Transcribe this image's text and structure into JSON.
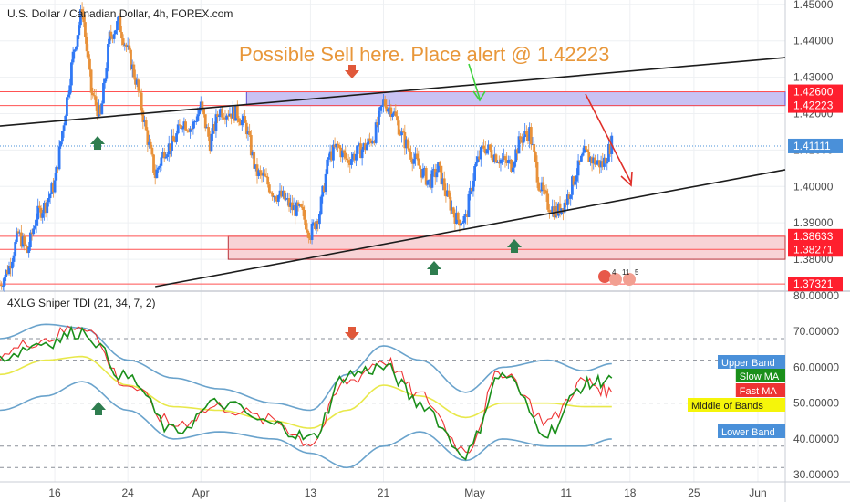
{
  "header": {
    "symbol_title": "U.S. Dollar / Canadian Dollar, 4h, FOREX.com"
  },
  "annotation": {
    "sell_note": "Possible Sell here. Place alert @ 1.42223"
  },
  "colors": {
    "up_candle": "#3179f5",
    "down_candle": "#e8913a",
    "resistance_line": "#ff5252",
    "supply_zone": "#c9c2f3",
    "demand_zone": "#f8d3d6",
    "trendline": "#1c1c1c",
    "current_price": "#4a90d9",
    "up_arrow": "#2e7d4f",
    "down_arrow": "#e0583a",
    "annotation_text": "#e8973a",
    "tdi_upper": "#6aa3cc",
    "tdi_slow": "#1a8f1a",
    "tdi_fast": "#ee3333",
    "tdi_middle": "#e8e84a"
  },
  "price_axis": {
    "ticks": [
      "1.45000",
      "1.44000",
      "1.43000",
      "1.42000",
      "1.41000",
      "1.40000",
      "1.39000",
      "1.38000"
    ]
  },
  "price_tags": [
    {
      "label": "1.42600",
      "price": 1.426,
      "kind": "red"
    },
    {
      "label": "1.42223",
      "price": 1.42223,
      "kind": "red"
    },
    {
      "label": "1.41111",
      "price": 1.41111,
      "kind": "blue"
    },
    {
      "label": "1.38633",
      "price": 1.38633,
      "kind": "red"
    },
    {
      "label": "1.38271",
      "price": 1.38271,
      "kind": "red"
    },
    {
      "label": "1.37321",
      "price": 1.37321,
      "kind": "red"
    }
  ],
  "indicator": {
    "title": "4XLG Sniper TDI (21, 34, 7, 2)",
    "ticks": [
      "80.00000",
      "70.00000",
      "60.00000",
      "50.00000",
      "40.00000",
      "30.00000"
    ],
    "legend": [
      {
        "label": "Upper Band",
        "value": 60.5,
        "bg": "#4a90d9",
        "fg": "#ffffff"
      },
      {
        "label": "Slow MA",
        "value": 57.2,
        "bg": "#1a8f1a",
        "fg": "#ffffff"
      },
      {
        "label": "Fast MA",
        "value": 52.8,
        "bg": "#ee3333",
        "fg": "#ffffff"
      },
      {
        "label": "Middle of Bands",
        "value": 48.3,
        "bg": "#f5f50a",
        "fg": "#1c1c1c"
      },
      {
        "label": "Lower Band",
        "value": 40.3,
        "bg": "#4a90d9",
        "fg": "#ffffff"
      }
    ]
  },
  "time_axis": {
    "ticks": [
      "16",
      "24",
      "Apr",
      "13",
      "21",
      "May",
      "11",
      "18",
      "25",
      "Jun"
    ]
  },
  "events": {
    "label_a": "4",
    "label_b": "11",
    "label_c": "5"
  },
  "chart_data": [
    {
      "type": "candlestick",
      "title": "U.S. Dollar / Canadian Dollar, 4h, FOREX.com",
      "ylim": [
        1.3715,
        1.4512
      ],
      "close_path": [
        {
          "date": "2020-03-10",
          "close": 1.373
        },
        {
          "date": "2020-03-11",
          "close": 1.378
        },
        {
          "date": "2020-03-12",
          "close": 1.387
        },
        {
          "date": "2020-03-13",
          "close": 1.382
        },
        {
          "date": "2020-03-14",
          "close": 1.392
        },
        {
          "date": "2020-03-15",
          "close": 1.395
        },
        {
          "date": "2020-03-16",
          "close": 1.401
        },
        {
          "date": "2020-03-17",
          "close": 1.418
        },
        {
          "date": "2020-03-18",
          "close": 1.436
        },
        {
          "date": "2020-03-19",
          "close": 1.449
        },
        {
          "date": "2020-03-20",
          "close": 1.426
        },
        {
          "date": "2020-03-21",
          "close": 1.419
        },
        {
          "date": "2020-03-22",
          "close": 1.441
        },
        {
          "date": "2020-03-23",
          "close": 1.445
        },
        {
          "date": "2020-03-24",
          "close": 1.437
        },
        {
          "date": "2020-03-25",
          "close": 1.428
        },
        {
          "date": "2020-03-26",
          "close": 1.415
        },
        {
          "date": "2020-03-27",
          "close": 1.403
        },
        {
          "date": "2020-03-28",
          "close": 1.41
        },
        {
          "date": "2020-03-29",
          "close": 1.412
        },
        {
          "date": "2020-03-30",
          "close": 1.418
        },
        {
          "date": "2020-03-31",
          "close": 1.416
        },
        {
          "date": "2020-04-01",
          "close": 1.422
        },
        {
          "date": "2020-04-02",
          "close": 1.412
        },
        {
          "date": "2020-04-03",
          "close": 1.421
        },
        {
          "date": "2020-04-05",
          "close": 1.42
        },
        {
          "date": "2020-04-06",
          "close": 1.416
        },
        {
          "date": "2020-04-07",
          "close": 1.404
        },
        {
          "date": "2020-04-08",
          "close": 1.402
        },
        {
          "date": "2020-04-09",
          "close": 1.398
        },
        {
          "date": "2020-04-10",
          "close": 1.397
        },
        {
          "date": "2020-04-11",
          "close": 1.394
        },
        {
          "date": "2020-04-12",
          "close": 1.393
        },
        {
          "date": "2020-04-13",
          "close": 1.387
        },
        {
          "date": "2020-04-14",
          "close": 1.393
        },
        {
          "date": "2020-04-15",
          "close": 1.408
        },
        {
          "date": "2020-04-16",
          "close": 1.411
        },
        {
          "date": "2020-04-17",
          "close": 1.407
        },
        {
          "date": "2020-04-18",
          "close": 1.409
        },
        {
          "date": "2020-04-19",
          "close": 1.411
        },
        {
          "date": "2020-04-20",
          "close": 1.414
        },
        {
          "date": "2020-04-21",
          "close": 1.423
        },
        {
          "date": "2020-04-22",
          "close": 1.421
        },
        {
          "date": "2020-04-23",
          "close": 1.414
        },
        {
          "date": "2020-04-24",
          "close": 1.409
        },
        {
          "date": "2020-04-25",
          "close": 1.405
        },
        {
          "date": "2020-04-26",
          "close": 1.401
        },
        {
          "date": "2020-04-27",
          "close": 1.405
        },
        {
          "date": "2020-04-28",
          "close": 1.397
        },
        {
          "date": "2020-04-29",
          "close": 1.391
        },
        {
          "date": "2020-04-30",
          "close": 1.391
        },
        {
          "date": "2020-05-01",
          "close": 1.405
        },
        {
          "date": "2020-05-02",
          "close": 1.411
        },
        {
          "date": "2020-05-03",
          "close": 1.409
        },
        {
          "date": "2020-05-04",
          "close": 1.407
        },
        {
          "date": "2020-05-05",
          "close": 1.406
        },
        {
          "date": "2020-05-06",
          "close": 1.413
        },
        {
          "date": "2020-05-07",
          "close": 1.415
        },
        {
          "date": "2020-05-08",
          "close": 1.401
        },
        {
          "date": "2020-05-09",
          "close": 1.395
        },
        {
          "date": "2020-05-10",
          "close": 1.393
        },
        {
          "date": "2020-05-11",
          "close": 1.396
        },
        {
          "date": "2020-05-12",
          "close": 1.403
        },
        {
          "date": "2020-05-13",
          "close": 1.409
        },
        {
          "date": "2020-05-14",
          "close": 1.407
        },
        {
          "date": "2020-05-15",
          "close": 1.406
        },
        {
          "date": "2020-05-16",
          "close": 1.412
        }
      ],
      "zones": [
        {
          "name": "supply",
          "from": 1.42223,
          "to": 1.426,
          "start": "2020-04-06"
        },
        {
          "name": "demand",
          "from": 1.38,
          "to": 1.38633,
          "start": "2020-04-04"
        }
      ],
      "horizontal_lines": [
        1.426,
        1.42223,
        1.38633,
        1.38271,
        1.37321
      ],
      "trendlines": [
        {
          "from": {
            "date": "2020-03-10",
            "price": 1.4166
          },
          "to": {
            "date": "2020-06-04",
            "price": 1.4354
          }
        },
        {
          "from": {
            "date": "2020-03-27",
            "price": 1.3725
          },
          "to": {
            "date": "2020-06-04",
            "price": 1.4046
          }
        }
      ],
      "current_price": 1.41111
    },
    {
      "type": "line",
      "title": "4XLG Sniper TDI (21, 34, 7, 2)",
      "ylim": [
        28,
        81
      ],
      "dashed_levels": [
        68,
        62,
        50,
        38,
        32
      ],
      "series": [
        {
          "name": "Upper Band",
          "values": [
            [
              "2020-03-10",
              68
            ],
            [
              "2020-03-15",
              72
            ],
            [
              "2020-03-19",
              71
            ],
            [
              "2020-03-24",
              62
            ],
            [
              "2020-03-29",
              57
            ],
            [
              "2020-04-03",
              54
            ],
            [
              "2020-04-09",
              50
            ],
            [
              "2020-04-13",
              48
            ],
            [
              "2020-04-17",
              58
            ],
            [
              "2020-04-21",
              66
            ],
            [
              "2020-04-25",
              62
            ],
            [
              "2020-04-30",
              53
            ],
            [
              "2020-05-04",
              60
            ],
            [
              "2020-05-09",
              62
            ],
            [
              "2020-05-13",
              59
            ],
            [
              "2020-05-16",
              61
            ]
          ]
        },
        {
          "name": "Slow MA",
          "values": [
            [
              "2020-03-10",
              63
            ],
            [
              "2020-03-15",
              67
            ],
            [
              "2020-03-19",
              70
            ],
            [
              "2020-03-24",
              57
            ],
            [
              "2020-03-29",
              42
            ],
            [
              "2020-04-03",
              50
            ],
            [
              "2020-04-09",
              44
            ],
            [
              "2020-04-13",
              40
            ],
            [
              "2020-04-17",
              58
            ],
            [
              "2020-04-21",
              60
            ],
            [
              "2020-04-25",
              50
            ],
            [
              "2020-04-30",
              36
            ],
            [
              "2020-05-04",
              58
            ],
            [
              "2020-05-09",
              42
            ],
            [
              "2020-05-13",
              55
            ],
            [
              "2020-05-16",
              57
            ]
          ]
        },
        {
          "name": "Fast MA",
          "values": [
            [
              "2020-03-10",
              64
            ],
            [
              "2020-03-15",
              68
            ],
            [
              "2020-03-19",
              72
            ],
            [
              "2020-03-24",
              55
            ],
            [
              "2020-03-29",
              44
            ],
            [
              "2020-04-03",
              49
            ],
            [
              "2020-04-09",
              45
            ],
            [
              "2020-04-13",
              39
            ],
            [
              "2020-04-17",
              56
            ],
            [
              "2020-04-21",
              62
            ],
            [
              "2020-04-25",
              52
            ],
            [
              "2020-04-30",
              37
            ],
            [
              "2020-05-04",
              59
            ],
            [
              "2020-05-09",
              45
            ],
            [
              "2020-05-13",
              56
            ],
            [
              "2020-05-16",
              53
            ]
          ]
        },
        {
          "name": "Middle of Bands",
          "values": [
            [
              "2020-03-10",
              58
            ],
            [
              "2020-03-15",
              62
            ],
            [
              "2020-03-19",
              63
            ],
            [
              "2020-03-24",
              55
            ],
            [
              "2020-03-29",
              49
            ],
            [
              "2020-04-03",
              48
            ],
            [
              "2020-04-09",
              45
            ],
            [
              "2020-04-13",
              43
            ],
            [
              "2020-04-17",
              48
            ],
            [
              "2020-04-21",
              55
            ],
            [
              "2020-04-25",
              52
            ],
            [
              "2020-04-30",
              46
            ],
            [
              "2020-05-04",
              50
            ],
            [
              "2020-05-09",
              50
            ],
            [
              "2020-05-13",
              49
            ],
            [
              "2020-05-16",
              49
            ]
          ]
        },
        {
          "name": "Lower Band",
          "values": [
            [
              "2020-03-10",
              48
            ],
            [
              "2020-03-15",
              52
            ],
            [
              "2020-03-19",
              56
            ],
            [
              "2020-03-24",
              48
            ],
            [
              "2020-03-29",
              40
            ],
            [
              "2020-04-03",
              42
            ],
            [
              "2020-04-09",
              40
            ],
            [
              "2020-04-13",
              36
            ],
            [
              "2020-04-17",
              32
            ],
            [
              "2020-04-21",
              38
            ],
            [
              "2020-04-25",
              42
            ],
            [
              "2020-04-30",
              34
            ],
            [
              "2020-05-04",
              40
            ],
            [
              "2020-05-09",
              38
            ],
            [
              "2020-05-13",
              38
            ],
            [
              "2020-05-16",
              40
            ]
          ]
        }
      ]
    }
  ]
}
